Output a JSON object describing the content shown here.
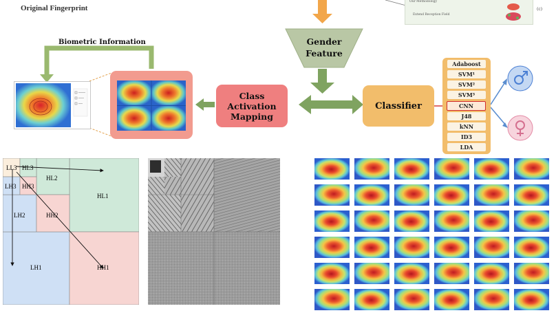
{
  "captions": {
    "original_fingerprint": "Original Fingerprint",
    "biometric_information": "Biometric Information",
    "panel_c": "(c)"
  },
  "gender_feature": {
    "line1": "Gender",
    "line2": "Feature"
  },
  "cam": {
    "line1": "Class",
    "line2": "Activation",
    "line3": "Mapping"
  },
  "classifier": {
    "label": "Classifier"
  },
  "algorithms": [
    "Adaboost",
    "SVM¹",
    "SVM²",
    "SVM³",
    "CNN",
    "J48",
    "kNN",
    "ID3",
    "LDA"
  ],
  "highlighted_algorithm": "CNN",
  "snippet": {
    "line1": "Our Methodology",
    "line2": "Extend Reception Field"
  },
  "wavelet": {
    "subbands": [
      "LL3",
      "HL3",
      "LH3",
      "HH3",
      "HL2",
      "LH2",
      "HH2",
      "HL1",
      "LH1",
      "HH1"
    ]
  },
  "colors": {
    "arrow_green": "#7fa360",
    "box_red": "#ef7f7f",
    "box_orange": "#f2bd6b",
    "male_blue": "#4a7fd4",
    "female_pink": "#e38aa5",
    "hl_green": "#cfe9d9",
    "lh_blue": "#cfe0f5",
    "hh_pink": "#f7d5d2",
    "ll_cream": "#fbeedd"
  },
  "icons": [
    "male-symbol-icon",
    "female-symbol-icon"
  ]
}
